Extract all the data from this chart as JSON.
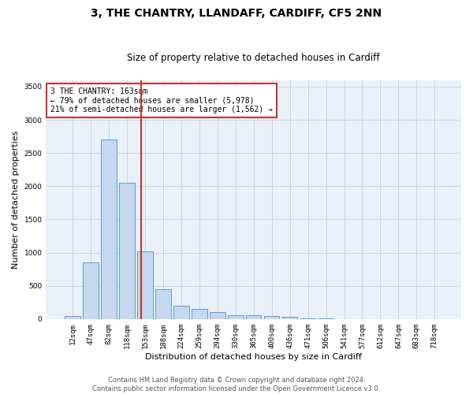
{
  "title": "3, THE CHANTRY, LLANDAFF, CARDIFF, CF5 2NN",
  "subtitle": "Size of property relative to detached houses in Cardiff",
  "xlabel": "Distribution of detached houses by size in Cardiff",
  "ylabel": "Number of detached properties",
  "categories": [
    "12sqm",
    "47sqm",
    "82sqm",
    "118sqm",
    "153sqm",
    "188sqm",
    "224sqm",
    "259sqm",
    "294sqm",
    "330sqm",
    "365sqm",
    "400sqm",
    "436sqm",
    "471sqm",
    "506sqm",
    "541sqm",
    "577sqm",
    "612sqm",
    "647sqm",
    "683sqm",
    "718sqm"
  ],
  "values": [
    50,
    850,
    2700,
    2050,
    1020,
    450,
    200,
    150,
    100,
    55,
    55,
    50,
    30,
    10,
    5,
    2,
    1,
    1,
    0,
    0,
    0
  ],
  "bar_color": "#c5d8ed",
  "bar_edge_color": "#5b9bd5",
  "bar_edge_width": 0.7,
  "vline_color": "#c0392b",
  "annotation_text": "3 THE CHANTRY: 163sqm\n← 79% of detached houses are smaller (5,978)\n21% of semi-detached houses are larger (1,562) →",
  "annotation_box_color": "#c0392b",
  "annotation_box_facecolor": "white",
  "ylim": [
    0,
    3600
  ],
  "yticks": [
    0,
    500,
    1000,
    1500,
    2000,
    2500,
    3000,
    3500
  ],
  "grid_color": "#c8d4e3",
  "background_color": "#eaf0f8",
  "footer_line1": "Contains HM Land Registry data © Crown copyright and database right 2024.",
  "footer_line2": "Contains public sector information licensed under the Open Government Licence v3.0.",
  "title_fontsize": 10,
  "subtitle_fontsize": 8.5,
  "axis_label_fontsize": 8,
  "tick_fontsize": 6.5,
  "footer_fontsize": 6,
  "annotation_fontsize": 7
}
